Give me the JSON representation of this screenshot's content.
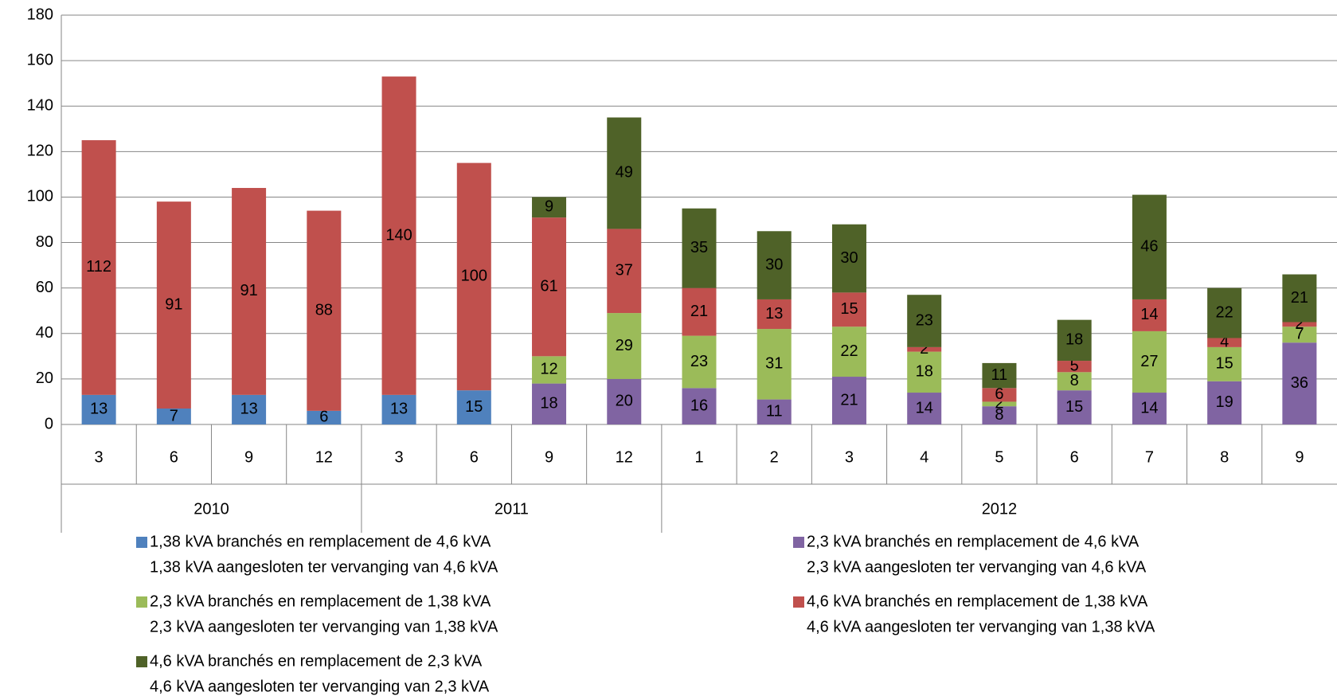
{
  "chart_data": {
    "type": "stacked_bar",
    "groups": [
      {
        "label": "2010",
        "categories": [
          "3",
          "6",
          "9",
          "12"
        ]
      },
      {
        "label": "2011",
        "categories": [
          "3",
          "6",
          "9",
          "12"
        ]
      },
      {
        "label": "2012",
        "categories": [
          "1",
          "2",
          "3",
          "4",
          "5",
          "6",
          "7",
          "8",
          "9"
        ]
      }
    ],
    "series": [
      {
        "name": [
          "1,38 kVA branchés en remplacement de 4,6 kVA",
          "1,38 kVA aangesloten ter vervanging van 4,6 kVA"
        ],
        "color": "#4f81bd",
        "values": [
          13,
          7,
          13,
          6,
          13,
          15,
          null,
          null,
          null,
          null,
          null,
          null,
          null,
          null,
          null,
          null,
          null
        ]
      },
      {
        "name": [
          "2,3 kVA branchés en remplacement de 4,6 kVA",
          "2,3 kVA aangesloten ter vervanging van 4,6 kVA"
        ],
        "color": "#8064a2",
        "values": [
          null,
          null,
          null,
          null,
          null,
          null,
          18,
          20,
          16,
          11,
          21,
          14,
          8,
          15,
          14,
          19,
          36
        ]
      },
      {
        "name": [
          "2,3 kVA branchés en remplacement de 1,38 kVA",
          "2,3 kVA aangesloten ter vervanging van 1,38 kVA"
        ],
        "color": "#9bbb59",
        "values": [
          null,
          null,
          null,
          null,
          null,
          null,
          12,
          29,
          23,
          31,
          22,
          18,
          2,
          8,
          27,
          15,
          7
        ]
      },
      {
        "name": [
          "4,6 kVA branchés en remplacement de 1,38 kVA",
          "4,6 kVA aangesloten ter vervanging van 1,38 kVA"
        ],
        "color": "#c0504d",
        "values": [
          112,
          91,
          91,
          88,
          140,
          100,
          61,
          37,
          21,
          13,
          15,
          2,
          6,
          5,
          14,
          4,
          2
        ]
      },
      {
        "name": [
          "4,6 kVA branchés en remplacement de 2,3 kVA",
          "4,6 kVA aangesloten ter vervanging van 2,3 kVA"
        ],
        "color": "#4f6228",
        "values": [
          null,
          null,
          null,
          null,
          null,
          null,
          9,
          49,
          35,
          30,
          30,
          23,
          11,
          18,
          46,
          22,
          21
        ]
      }
    ],
    "ylim": [
      0,
      180
    ],
    "yticks": [
      0,
      20,
      40,
      60,
      80,
      100,
      120,
      140,
      160,
      180
    ],
    "grid": true
  }
}
